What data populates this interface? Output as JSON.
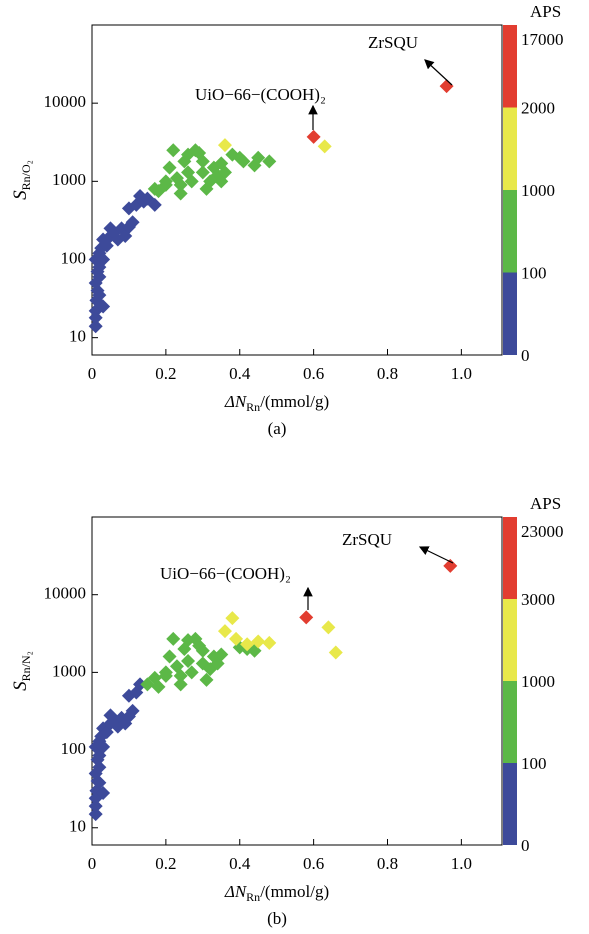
{
  "chart_data": [
    {
      "type": "scatter",
      "caption": "(a)",
      "ylabel": {
        "main": "S",
        "sub": "Rn/O₂"
      },
      "xlabel": {
        "main": "ΔN",
        "sub": "Rn",
        "rest": "/(mmol/g)"
      },
      "xlim": [
        0,
        1.11
      ],
      "xticks": [
        0,
        0.2,
        0.4,
        0.6,
        0.8,
        {
          "value": 1,
          "label": "1.0"
        }
      ],
      "ylim": [
        6,
        100000
      ],
      "yticks": [
        10,
        100,
        1000,
        10000
      ],
      "log_y": true,
      "colorbar": {
        "title": "APS",
        "labels": [
          17000,
          2000,
          1000,
          100,
          0
        ],
        "colors": [
          "#e23d30",
          "#e8e84a",
          "#5cb847",
          "#3d4a9a"
        ]
      },
      "annotations": [
        "ZrSQU",
        "UiO−66−(COOH)₂"
      ],
      "series": [
        {
          "color": "#3d4a9a",
          "x": [
            0.01,
            0.01,
            0.01,
            0.012,
            0.015,
            0.01,
            0.02,
            0.015,
            0.02,
            0.01,
            0.02,
            0.03,
            0.025,
            0.03,
            0.04,
            0.05,
            0.05,
            0.06,
            0.07,
            0.08,
            0.09,
            0.1,
            0.11,
            0.1,
            0.12,
            0.13,
            0.14,
            0.15,
            0.17,
            0.03,
            0.02
          ],
          "values": [
            14,
            18,
            22,
            30,
            40,
            50,
            60,
            70,
            80,
            100,
            120,
            100,
            140,
            180,
            150,
            200,
            250,
            220,
            180,
            250,
            200,
            260,
            300,
            450,
            500,
            650,
            550,
            600,
            500,
            25,
            35
          ]
        },
        {
          "color": "#5cb847",
          "x": [
            0.17,
            0.18,
            0.2,
            0.21,
            0.22,
            0.23,
            0.24,
            0.24,
            0.25,
            0.26,
            0.27,
            0.28,
            0.29,
            0.3,
            0.3,
            0.31,
            0.32,
            0.33,
            0.34,
            0.35,
            0.35,
            0.36,
            0.38,
            0.4,
            0.41,
            0.44,
            0.45,
            0.48,
            0.2,
            0.26
          ],
          "values": [
            800,
            750,
            900,
            1500,
            2500,
            1100,
            900,
            700,
            1800,
            2200,
            1000,
            2500,
            2300,
            1800,
            1300,
            800,
            1000,
            1500,
            1200,
            1000,
            1700,
            1300,
            2200,
            2000,
            1800,
            1600,
            2000,
            1800,
            1000,
            1300
          ]
        },
        {
          "color": "#e8e84a",
          "x": [
            0.36,
            0.63
          ],
          "values": [
            2900,
            2800
          ]
        },
        {
          "color": "#e23d30",
          "x": [
            0.6,
            0.96
          ],
          "values": [
            3700,
            16500
          ]
        }
      ]
    },
    {
      "type": "scatter",
      "caption": "(b)",
      "ylabel": {
        "main": "S",
        "sub": "Rn/N₂"
      },
      "xlabel": {
        "main": "ΔN",
        "sub": "Rn",
        "rest": "/(mmol/g)"
      },
      "xlim": [
        0,
        1.11
      ],
      "xticks": [
        0,
        0.2,
        0.4,
        0.6,
        0.8,
        {
          "value": 1,
          "label": "1.0"
        }
      ],
      "ylim": [
        6,
        100000
      ],
      "yticks": [
        10,
        100,
        1000,
        10000
      ],
      "log_y": true,
      "colorbar": {
        "title": "APS",
        "labels": [
          23000,
          3000,
          1000,
          100,
          0
        ],
        "colors": [
          "#e23d30",
          "#e8e84a",
          "#5cb847",
          "#3d4a9a"
        ]
      },
      "annotations": [
        "ZrSQU",
        "UiO−66−(COOH)₂"
      ],
      "series": [
        {
          "color": "#3d4a9a",
          "x": [
            0.01,
            0.01,
            0.01,
            0.012,
            0.015,
            0.01,
            0.02,
            0.015,
            0.02,
            0.01,
            0.02,
            0.03,
            0.025,
            0.03,
            0.04,
            0.05,
            0.05,
            0.06,
            0.07,
            0.08,
            0.09,
            0.1,
            0.11,
            0.1,
            0.12,
            0.13,
            0.03,
            0.02
          ],
          "values": [
            15,
            19,
            24,
            30,
            40,
            50,
            60,
            75,
            85,
            110,
            130,
            110,
            150,
            190,
            170,
            220,
            280,
            240,
            200,
            260,
            220,
            270,
            320,
            500,
            550,
            700,
            28,
            38
          ]
        },
        {
          "color": "#5cb847",
          "x": [
            0.15,
            0.17,
            0.18,
            0.2,
            0.21,
            0.22,
            0.23,
            0.24,
            0.24,
            0.25,
            0.26,
            0.27,
            0.28,
            0.29,
            0.3,
            0.3,
            0.31,
            0.32,
            0.33,
            0.34,
            0.35,
            0.2,
            0.26,
            0.4,
            0.42,
            0.44
          ],
          "values": [
            700,
            850,
            650,
            900,
            1600,
            2700,
            1200,
            900,
            700,
            2000,
            2600,
            1000,
            2700,
            2200,
            1900,
            1300,
            800,
            1100,
            1600,
            1300,
            1700,
            1000,
            1400,
            2100,
            2000,
            1900
          ]
        },
        {
          "color": "#e8e84a",
          "x": [
            0.36,
            0.38,
            0.39,
            0.42,
            0.45,
            0.48,
            0.64,
            0.66
          ],
          "values": [
            3400,
            5000,
            2700,
            2300,
            2500,
            2400,
            3800,
            1800
          ]
        },
        {
          "color": "#e23d30",
          "x": [
            0.58,
            0.97
          ],
          "values": [
            5100,
            23500
          ]
        }
      ]
    }
  ]
}
